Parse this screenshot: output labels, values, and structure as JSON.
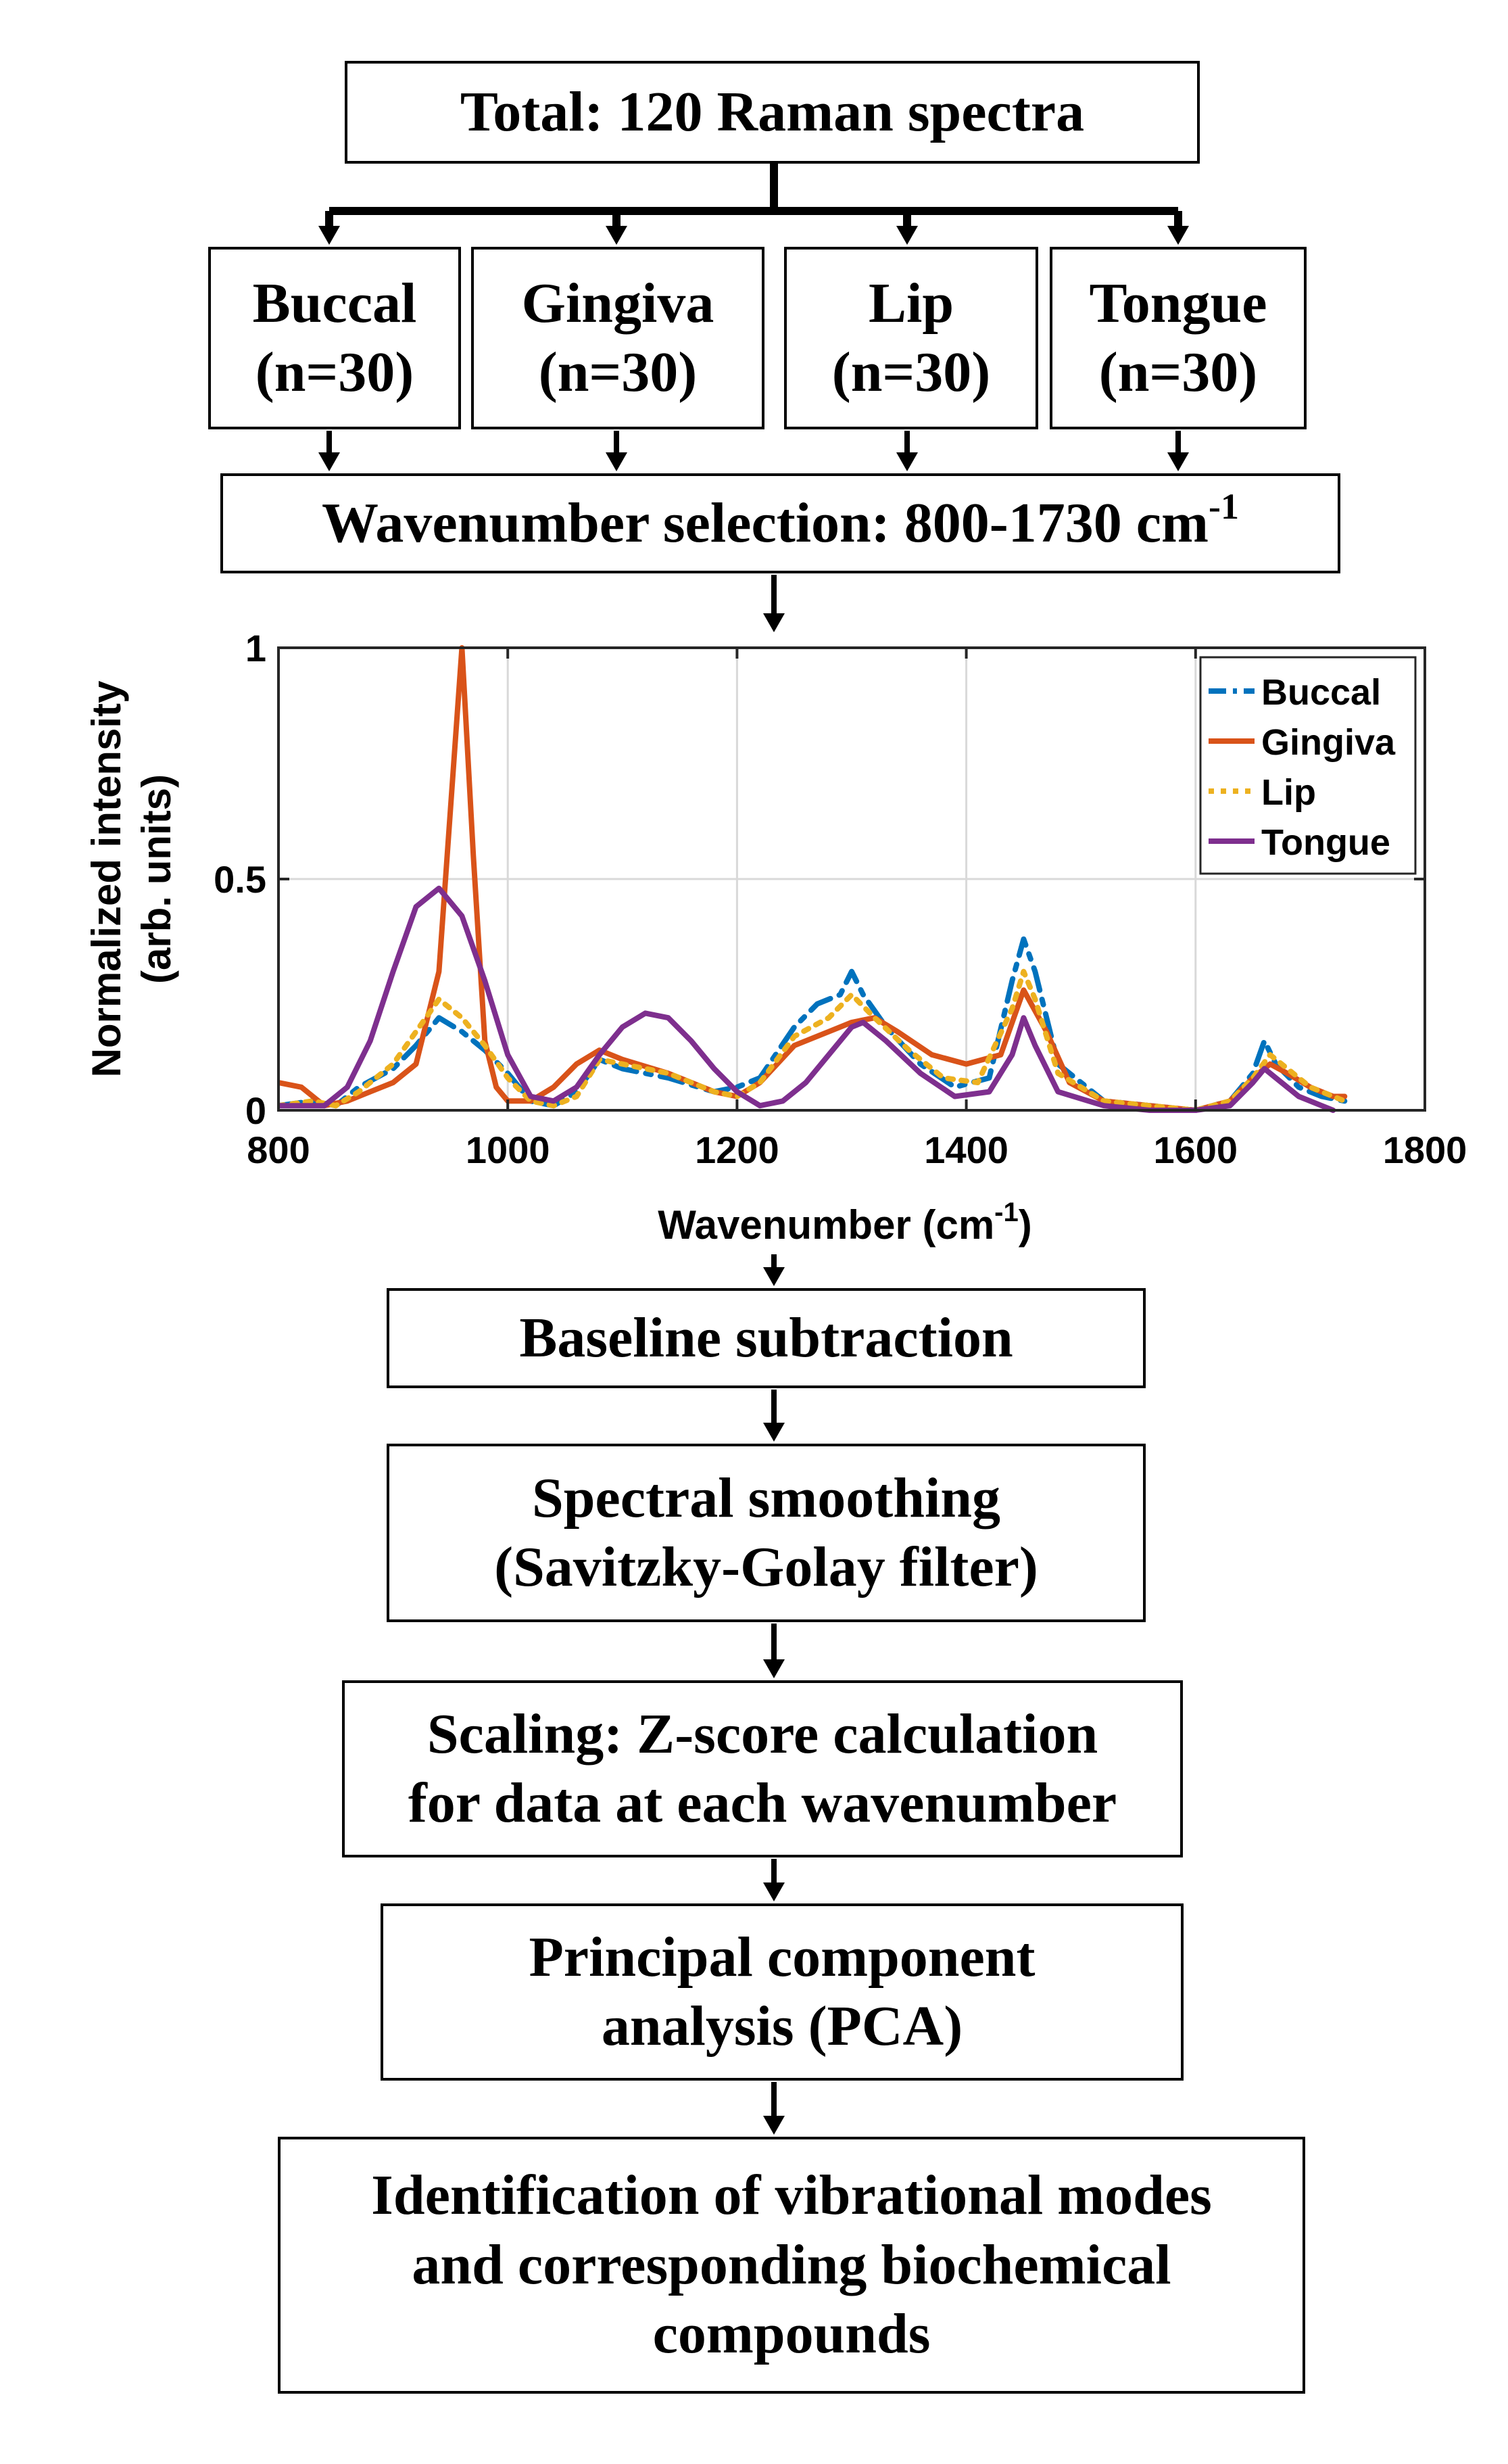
{
  "flow": {
    "total": "Total: 120 Raman spectra",
    "groups": [
      {
        "name": "Buccal",
        "count": "(n=30)"
      },
      {
        "name": "Gingiva",
        "count": "(n=30)"
      },
      {
        "name": "Lip",
        "count": "(n=30)"
      },
      {
        "name": "Tongue",
        "count": "(n=30)"
      }
    ],
    "wavenumber_selection": "Wavenumber selection: 800-1730 cm",
    "wavenumber_selection_sup": "-1",
    "baseline": "Baseline subtraction",
    "smoothing_line1": "Spectral smoothing",
    "smoothing_line2": "(Savitzky-Golay filter)",
    "scaling_line1": "Scaling: Z-score calculation",
    "scaling_line2": "for data at each wavenumber",
    "pca_line1": "Principal component",
    "pca_line2": "analysis (PCA)",
    "ident_line1": "Identification of vibrational modes",
    "ident_line2": "and corresponding biochemical",
    "ident_line3": "compounds"
  },
  "chart_data": {
    "type": "line",
    "xlabel": "Wavenumber (cm",
    "xlabel_sup": "-1",
    "xlabel_end": ")",
    "ylabel_line1": "Normalized intensity",
    "ylabel_line2": "(arb. units)",
    "xlim": [
      800,
      1800
    ],
    "ylim": [
      0,
      1
    ],
    "x_ticks": [
      "800",
      "1000",
      "1200",
      "1400",
      "1600",
      "1800"
    ],
    "y_ticks": [
      "0",
      "0.5",
      "1"
    ],
    "grid": true,
    "legend_position": "top-right",
    "series": [
      {
        "name": "Buccal",
        "color": "#0072BD",
        "style": "dashdot",
        "x": [
          800,
          830,
          850,
          870,
          900,
          920,
          940,
          960,
          980,
          1000,
          1020,
          1040,
          1060,
          1080,
          1100,
          1140,
          1180,
          1200,
          1220,
          1250,
          1270,
          1290,
          1300,
          1310,
          1330,
          1360,
          1390,
          1420,
          1440,
          1450,
          1460,
          1480,
          1520,
          1560,
          1600,
          1630,
          1650,
          1660,
          1670,
          1690,
          1710,
          1730
        ],
        "y": [
          0.01,
          0.02,
          0.01,
          0.05,
          0.09,
          0.14,
          0.2,
          0.17,
          0.13,
          0.08,
          0.02,
          0.01,
          0.04,
          0.11,
          0.09,
          0.07,
          0.04,
          0.05,
          0.07,
          0.18,
          0.23,
          0.25,
          0.3,
          0.25,
          0.18,
          0.1,
          0.05,
          0.07,
          0.28,
          0.37,
          0.3,
          0.1,
          0.02,
          0.01,
          0.0,
          0.02,
          0.08,
          0.15,
          0.1,
          0.05,
          0.03,
          0.02
        ]
      },
      {
        "name": "Gingiva",
        "color": "#D95319",
        "style": "solid",
        "x": [
          800,
          820,
          840,
          860,
          880,
          900,
          920,
          940,
          950,
          960,
          970,
          980,
          990,
          1000,
          1020,
          1040,
          1060,
          1080,
          1100,
          1140,
          1180,
          1200,
          1220,
          1250,
          1280,
          1300,
          1320,
          1340,
          1370,
          1400,
          1430,
          1450,
          1470,
          1490,
          1520,
          1560,
          1600,
          1630,
          1650,
          1665,
          1680,
          1700,
          1720,
          1730
        ],
        "y": [
          0.06,
          0.05,
          0.01,
          0.02,
          0.04,
          0.06,
          0.1,
          0.3,
          0.65,
          1.0,
          0.55,
          0.15,
          0.05,
          0.02,
          0.02,
          0.05,
          0.1,
          0.13,
          0.11,
          0.08,
          0.04,
          0.03,
          0.06,
          0.14,
          0.17,
          0.19,
          0.2,
          0.17,
          0.12,
          0.1,
          0.12,
          0.26,
          0.17,
          0.06,
          0.02,
          0.01,
          0.0,
          0.02,
          0.07,
          0.1,
          0.08,
          0.05,
          0.03,
          0.03
        ]
      },
      {
        "name": "Lip",
        "color": "#EDB120",
        "style": "dotted",
        "x": [
          800,
          830,
          850,
          870,
          900,
          920,
          940,
          960,
          980,
          1000,
          1020,
          1040,
          1060,
          1080,
          1100,
          1140,
          1180,
          1200,
          1220,
          1250,
          1280,
          1300,
          1320,
          1350,
          1380,
          1410,
          1440,
          1450,
          1460,
          1480,
          1520,
          1560,
          1600,
          1630,
          1650,
          1665,
          1680,
          1700,
          1720,
          1730
        ],
        "y": [
          0.01,
          0.02,
          0.01,
          0.04,
          0.1,
          0.17,
          0.24,
          0.2,
          0.14,
          0.07,
          0.02,
          0.01,
          0.03,
          0.11,
          0.1,
          0.08,
          0.04,
          0.03,
          0.06,
          0.16,
          0.2,
          0.25,
          0.2,
          0.13,
          0.07,
          0.06,
          0.22,
          0.3,
          0.24,
          0.08,
          0.02,
          0.01,
          0.0,
          0.02,
          0.07,
          0.12,
          0.09,
          0.05,
          0.03,
          0.02
        ]
      },
      {
        "name": "Tongue",
        "color": "#7E2F8E",
        "style": "solid",
        "x": [
          800,
          820,
          840,
          860,
          880,
          900,
          920,
          940,
          960,
          980,
          1000,
          1020,
          1040,
          1060,
          1080,
          1100,
          1120,
          1140,
          1160,
          1180,
          1200,
          1220,
          1240,
          1260,
          1280,
          1300,
          1310,
          1330,
          1360,
          1390,
          1420,
          1440,
          1450,
          1460,
          1480,
          1520,
          1560,
          1600,
          1630,
          1650,
          1660,
          1670,
          1690,
          1710,
          1720
        ],
        "y": [
          0.01,
          0.01,
          0.01,
          0.05,
          0.15,
          0.3,
          0.44,
          0.48,
          0.42,
          0.28,
          0.12,
          0.03,
          0.02,
          0.05,
          0.12,
          0.18,
          0.21,
          0.2,
          0.15,
          0.09,
          0.04,
          0.01,
          0.02,
          0.06,
          0.12,
          0.18,
          0.19,
          0.15,
          0.08,
          0.03,
          0.04,
          0.12,
          0.2,
          0.14,
          0.04,
          0.01,
          0.0,
          0.0,
          0.01,
          0.06,
          0.09,
          0.07,
          0.03,
          0.01,
          0.0
        ]
      }
    ]
  }
}
